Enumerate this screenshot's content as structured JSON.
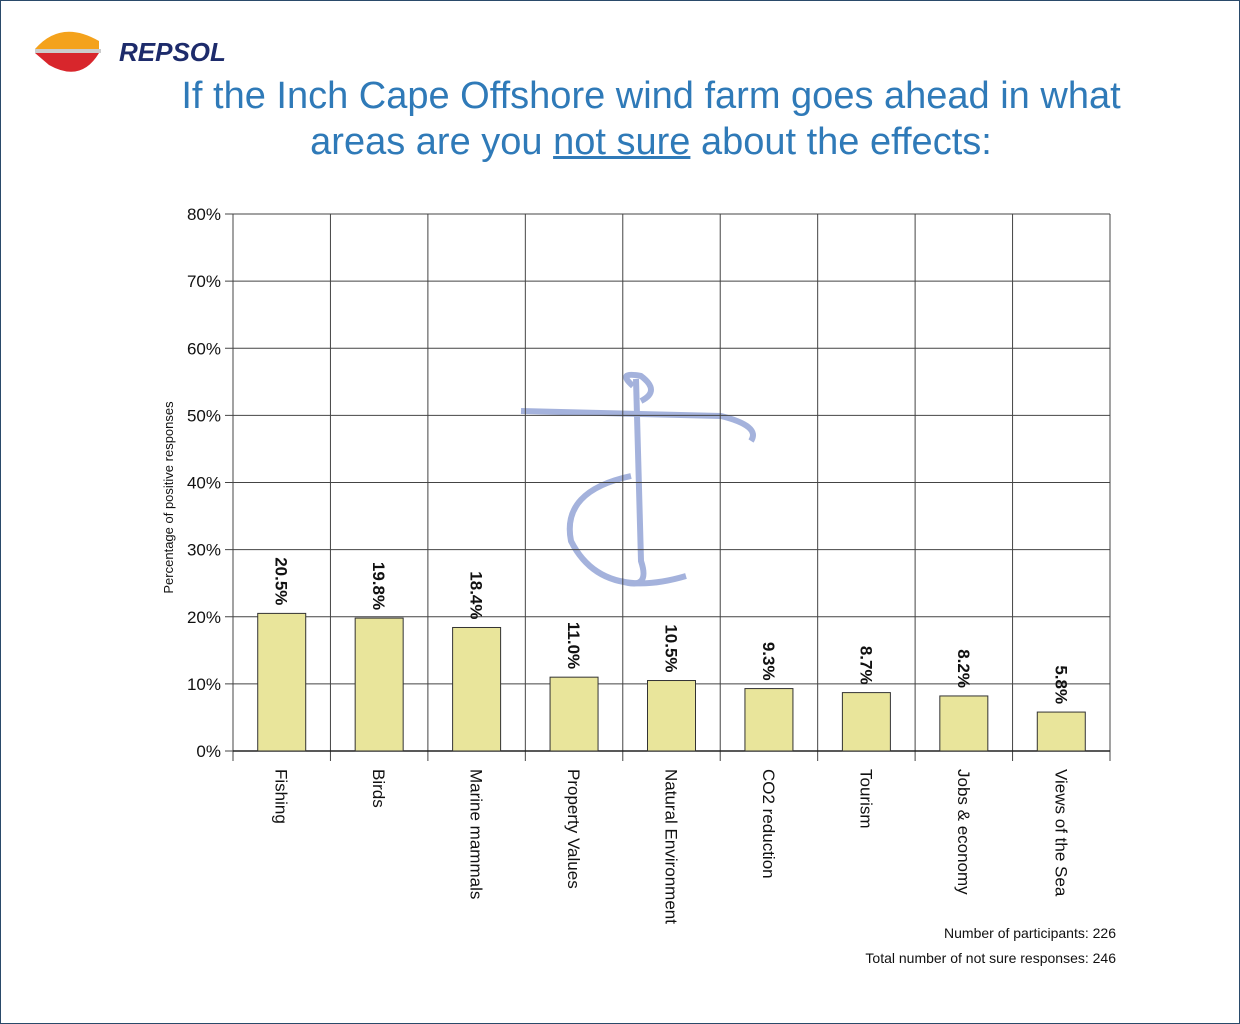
{
  "logo": "REPSOL",
  "chart_data": {
    "type": "bar",
    "title": [
      "If the Inch Cape Offshore wind farm goes ahead in what areas are you ",
      "not sure",
      " about the effects:"
    ],
    "y_label": "Percentage of positive responses",
    "categories": [
      "Fishing",
      "Birds",
      "Marine mammals",
      "Property Values",
      "Natural Environment",
      "CO2 reduction",
      "Tourism",
      "Jobs & economy",
      "Views of the Sea"
    ],
    "values": [
      20.5,
      19.8,
      18.4,
      11.0,
      10.5,
      9.3,
      8.7,
      8.2,
      5.8
    ],
    "value_labels": [
      "20.5%",
      "19.8%",
      "18.4%",
      "11.0%",
      "10.5%",
      "9.3%",
      "8.7%",
      "8.2%",
      "5.8%"
    ],
    "color": "#e9e59b",
    "ylim": [
      0,
      80
    ],
    "yticks": [
      {
        "value": 0,
        "label": "0%"
      },
      {
        "value": 10,
        "label": "10%"
      },
      {
        "value": 20,
        "label": "20%"
      },
      {
        "value": 30,
        "label": "30%"
      },
      {
        "value": 40,
        "label": "40%"
      },
      {
        "value": 50,
        "label": "50%"
      },
      {
        "value": 60,
        "label": "60%"
      },
      {
        "value": 70,
        "label": "70%"
      },
      {
        "value": 80,
        "label": "80%"
      }
    ],
    "grid": true,
    "notes": [
      "Number of participants: 226",
      "Total number of not sure responses: 246"
    ]
  }
}
